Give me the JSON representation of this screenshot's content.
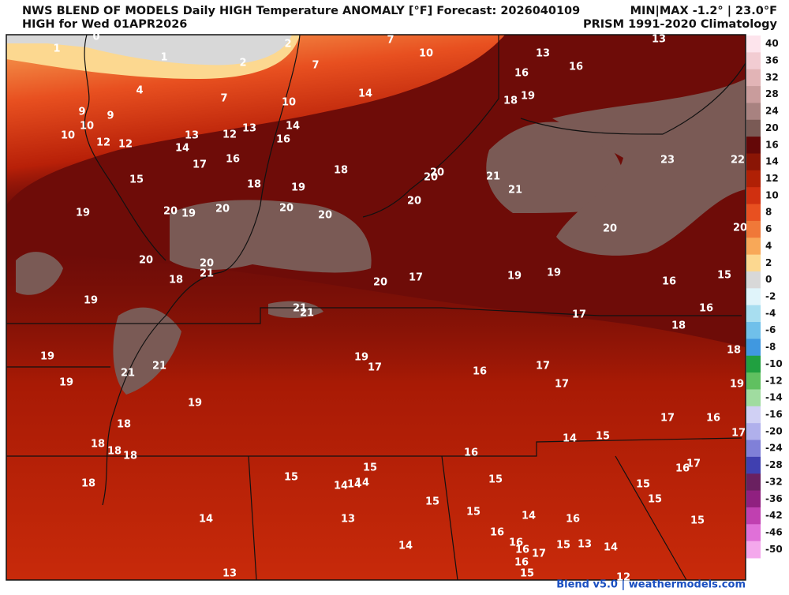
{
  "header": {
    "title": "NWS BLEND OF MODELS Daily HIGH Temperature ANOMALY [°F] Forecast: 2026040109",
    "subtitle": "HIGH for Wed 01APR2026",
    "minmax": "MIN|MAX -1.2° | 23.0°F",
    "climatology": "PRISM 1991-2020 Climatology"
  },
  "map_labels": [
    0,
    1,
    2,
    7,
    10,
    13,
    1,
    2,
    7,
    13,
    16,
    16,
    4,
    7,
    14,
    10,
    18,
    19,
    9,
    9,
    10,
    10,
    12,
    12,
    13,
    14,
    12,
    13,
    14,
    16,
    17,
    16,
    18,
    20,
    20,
    21,
    21,
    23,
    22,
    15,
    18,
    19,
    20,
    19,
    20,
    19,
    20,
    20,
    20,
    20,
    20,
    20,
    20,
    21,
    18,
    20,
    17,
    19,
    19,
    16,
    15,
    19,
    21,
    21,
    16,
    17,
    18,
    18,
    19,
    19,
    17,
    16,
    17,
    21,
    21,
    19,
    17,
    19,
    19,
    17,
    16,
    18,
    14,
    15,
    17,
    18,
    18,
    18,
    16,
    17,
    16,
    15,
    15,
    14,
    14,
    14,
    15,
    18,
    15,
    15,
    15,
    15,
    14,
    13,
    14,
    16,
    15,
    16,
    16,
    16,
    17,
    15,
    13,
    14,
    14,
    16,
    15,
    13,
    12
  ],
  "colorbar": {
    "ticks": [
      40,
      36,
      32,
      28,
      24,
      20,
      16,
      14,
      12,
      10,
      8,
      6,
      4,
      2,
      0,
      -2,
      -4,
      -6,
      -8,
      -10,
      -12,
      -14,
      -16,
      -20,
      -24,
      -28,
      -32,
      -36,
      -42,
      -46,
      -50
    ],
    "colors": [
      "#fde4ec",
      "#f2ccd2",
      "#e2b4b6",
      "#c99c9c",
      "#a88280",
      "#7a5a55",
      "#640808",
      "#8a1505",
      "#b02005",
      "#d03010",
      "#e85020",
      "#f07838",
      "#f8a858",
      "#fcd890",
      "#d8d8d8",
      "#e0f4fa",
      "#a8def0",
      "#70c0ea",
      "#4098e0",
      "#20a040",
      "#60c060",
      "#a0dca0",
      "#d0d0f4",
      "#b0b0ec",
      "#8080d8",
      "#4040b0",
      "#6a2060",
      "#902080",
      "#c040b0",
      "#e070d8",
      "#f4a8ec"
    ]
  },
  "footer": "Blend v5.0 | weathermodels.com"
}
